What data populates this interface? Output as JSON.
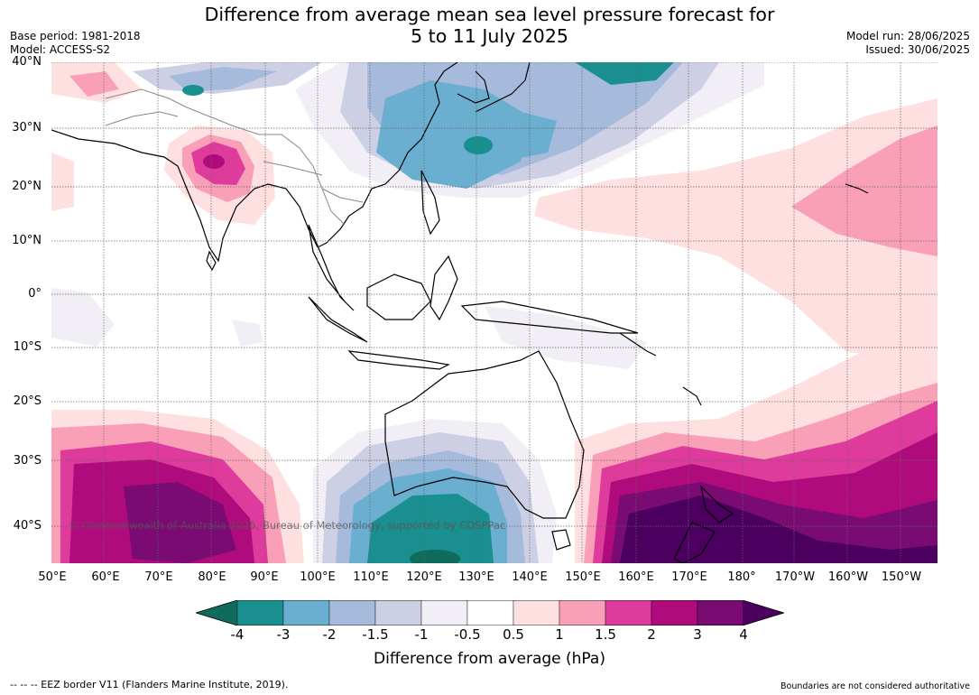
{
  "title_line1": "Difference from average mean sea level pressure forecast for",
  "title_line2": "5 to 11 July 2025",
  "base_period": "Base period: 1981-2018",
  "model": "Model: ACCESS-S2",
  "model_run": "Model run: 28/06/2025",
  "issued": "Issued: 30/06/2025",
  "lat_labels": [
    "40°N",
    "30°N",
    "20°N",
    "10°N",
    "0°",
    "10°S",
    "20°S",
    "30°S",
    "40°S"
  ],
  "lon_labels": [
    "50°E",
    "60°E",
    "70°E",
    "80°E",
    "90°E",
    "100°E",
    "110°E",
    "120°E",
    "130°E",
    "140°E",
    "150°E",
    "160°E",
    "170°E",
    "180°",
    "170°W",
    "160°W",
    "150°W"
  ],
  "colorbar": {
    "ticks": [
      "-4",
      "-3",
      "-2",
      "-1.5",
      "-1",
      "-0.5",
      "0.5",
      "1",
      "1.5",
      "2",
      "3",
      "4"
    ],
    "colors": [
      "#1a8f8f",
      "#6aaed0",
      "#a6badb",
      "#cdd0e5",
      "#f1eef5",
      "#ffffff",
      "#fde0df",
      "#f9a0b8",
      "#df3b9c",
      "#b00b7d",
      "#7a0b73"
    ],
    "under_color": "#0f6b5c",
    "over_color": "#4b005f",
    "label": "Difference from average (hPa)"
  },
  "copyright": "© Commonwealth of Australia 2025, Bureau of Meteorology, supported by COSPPac",
  "footnote_left": "--  --  -- EEZ border V11 (Flanders Marine Institute, 2019).",
  "footnote_right": "Boundaries are not considered authoritative"
}
